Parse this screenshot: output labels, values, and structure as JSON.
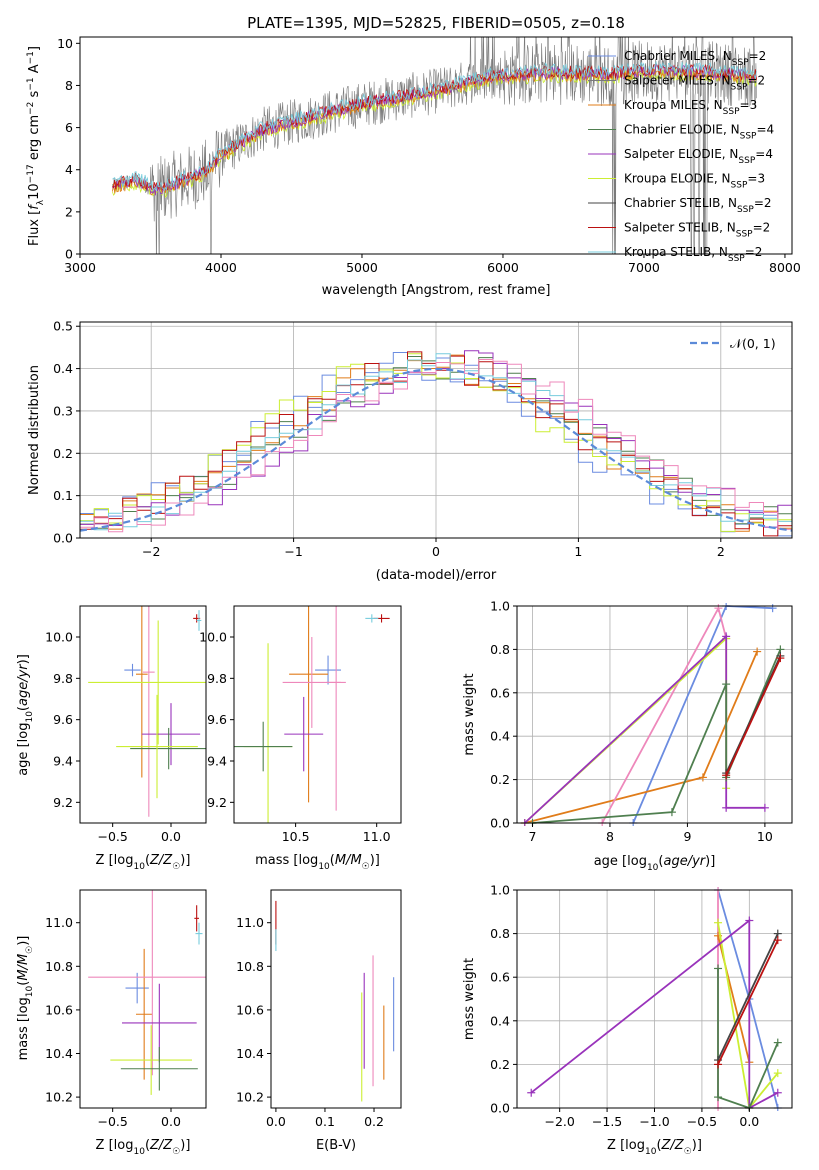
{
  "figure_title": "PLATE=1395, MJD=52825, FIBERID=0505, z=0.18",
  "colors": {
    "Chabrier MILES": "#6b8ce0",
    "Salpeter MILES": "#7a7a7a",
    "Kroupa MILES": "#e07c1a",
    "Chabrier ELODIE": "#4f7f4f",
    "Salpeter ELODIE": "#9933bb",
    "Kroupa ELODIE": "#ccee33",
    "Chabrier STELIB": "#444444",
    "Salpeter STELIB": "#bb1111",
    "Kroupa STELIB": "#77ccdd",
    "pink": "#ee88bb",
    "normal_curve": "#5b8ad8"
  },
  "chart_data": [
    {
      "id": "spectrum",
      "type": "line",
      "title": "PLATE=1395, MJD=52825, FIBERID=0505, z=0.18",
      "xlabel": "wavelength [Angstrom, rest frame]",
      "ylabel": "Flux [f_λ 10^-17 erg cm^-2 s^-1 A^-1]",
      "xlim": [
        3000,
        8050
      ],
      "ylim": [
        0,
        10.3
      ],
      "xticks": [
        3000,
        4000,
        5000,
        6000,
        7000,
        8000
      ],
      "yticks": [
        0,
        2,
        4,
        6,
        8,
        10
      ],
      "legend_position": "right",
      "legend": [
        {
          "label": "Chabrier MILES, N",
          "sub": "SSP",
          "suffix": "=2",
          "color": "Chabrier MILES"
        },
        {
          "label": "Salpeter MILES, N",
          "sub": "SSP",
          "suffix": "=2",
          "color": "Salpeter MILES"
        },
        {
          "label": "Kroupa MILES, N",
          "sub": "SSP",
          "suffix": "=3",
          "color": "Kroupa MILES"
        },
        {
          "label": "Chabrier ELODIE, N",
          "sub": "SSP",
          "suffix": "=4",
          "color": "Chabrier ELODIE"
        },
        {
          "label": "Salpeter ELODIE, N",
          "sub": "SSP",
          "suffix": "=4",
          "color": "Salpeter ELODIE"
        },
        {
          "label": "Kroupa ELODIE, N",
          "sub": "SSP",
          "suffix": "=3",
          "color": "Kroupa ELODIE"
        },
        {
          "label": "Chabrier STELIB, N",
          "sub": "SSP",
          "suffix": "=2",
          "color": "Chabrier STELIB"
        },
        {
          "label": "Salpeter STELIB, N",
          "sub": "SSP",
          "suffix": "=2",
          "color": "Salpeter STELIB"
        },
        {
          "label": "Kroupa STELIB, N",
          "sub": "SSP",
          "suffix": "=2",
          "color": "Kroupa STELIB"
        }
      ],
      "continuum": [
        [
          3230,
          3.2
        ],
        [
          3400,
          3.5
        ],
        [
          3550,
          3.0
        ],
        [
          3700,
          3.4
        ],
        [
          3900,
          3.9
        ],
        [
          4000,
          4.7
        ],
        [
          4300,
          5.9
        ],
        [
          4700,
          6.6
        ],
        [
          5000,
          7.1
        ],
        [
          5500,
          7.7
        ],
        [
          5900,
          8.4
        ],
        [
          6300,
          8.6
        ],
        [
          6700,
          8.5
        ],
        [
          7100,
          8.7
        ],
        [
          7500,
          8.6
        ],
        [
          7800,
          8.4
        ]
      ],
      "grid": false
    },
    {
      "id": "residuals",
      "type": "line",
      "xlabel": "(data-model)/error",
      "ylabel": "Normed distribution",
      "xlim": [
        -2.5,
        2.5
      ],
      "ylim": [
        0,
        0.51
      ],
      "xticks": [
        -2,
        -1,
        0,
        1,
        2
      ],
      "yticks": [
        0.0,
        0.1,
        0.2,
        0.3,
        0.4,
        0.5
      ],
      "legend": "𝒩(0, 1)",
      "legend_position": "upper right",
      "grid": true,
      "histogram_bins": 50,
      "histogram_series_colors": [
        "Chabrier MILES",
        "Kroupa MILES",
        "Chabrier ELODIE",
        "Salpeter ELODIE",
        "Kroupa ELODIE",
        "Salpeter STELIB",
        "Kroupa STELIB",
        "pink"
      ]
    },
    {
      "id": "age_vs_Z",
      "type": "scatter",
      "xlabel": "Z [log10(Z/Z☉)]",
      "ylabel": "age [log10(age/yr)]",
      "xlim": [
        -0.78,
        0.3
      ],
      "ylim": [
        9.1,
        10.15
      ],
      "xticks": [
        -0.5,
        0.0
      ],
      "yticks": [
        9.2,
        9.4,
        9.6,
        9.8,
        10.0
      ],
      "grid": false,
      "points": [
        {
          "x": -0.33,
          "y": 9.84,
          "xerr": 0.07,
          "yerr": 0.03,
          "color": "Chabrier MILES"
        },
        {
          "x": -0.25,
          "y": 9.82,
          "xerr": 0.05,
          "yerr": 0.5,
          "color": "Kroupa MILES"
        },
        {
          "x": -0.19,
          "y": 9.83,
          "xerr": 0.05,
          "yerr": 0.7,
          "color": "pink"
        },
        {
          "x": -0.11,
          "y": 9.78,
          "xerr": 0.6,
          "yerr": 0.3,
          "color": "Kroupa ELODIE"
        },
        {
          "x": 0.0,
          "y": 9.53,
          "xerr": 0.25,
          "yerr": 0.15,
          "color": "Salpeter ELODIE"
        },
        {
          "x": -0.02,
          "y": 9.46,
          "xerr": 0.33,
          "yerr": 0.1,
          "color": "Chabrier ELODIE"
        },
        {
          "x": -0.12,
          "y": 9.47,
          "xerr": 0.35,
          "yerr": 0.25,
          "color": "Kroupa ELODIE"
        },
        {
          "x": 0.22,
          "y": 10.09,
          "xerr": 0.03,
          "yerr": 0.02,
          "color": "Salpeter STELIB"
        },
        {
          "x": 0.24,
          "y": 10.08,
          "xerr": 0.02,
          "yerr": 0.05,
          "color": "Kroupa STELIB"
        }
      ]
    },
    {
      "id": "age_vs_mass",
      "type": "scatter",
      "xlabel": "mass [log10(M/M☉)]",
      "ylabel": "",
      "xlim": [
        10.12,
        11.15
      ],
      "ylim": [
        9.1,
        10.15
      ],
      "xticks": [
        10.5,
        11.0
      ],
      "yticks": [
        9.2,
        9.4,
        9.6,
        9.8,
        10.0
      ],
      "grid": false,
      "points": [
        {
          "x": 10.7,
          "y": 9.84,
          "xerr": 0.08,
          "yerr": 0.07,
          "color": "Chabrier MILES"
        },
        {
          "x": 10.58,
          "y": 9.82,
          "xerr": 0.12,
          "yerr": 0.62,
          "color": "Kroupa MILES"
        },
        {
          "x": 10.6,
          "y": 9.78,
          "xerr": 0.18,
          "yerr": 0.22,
          "color": "pink"
        },
        {
          "x": 10.75,
          "y": 9.78,
          "xerr": 0.06,
          "yerr": 0.62,
          "color": "pink"
        },
        {
          "x": 10.55,
          "y": 9.53,
          "xerr": 0.12,
          "yerr": 0.18,
          "color": "Salpeter ELODIE"
        },
        {
          "x": 10.33,
          "y": 9.47,
          "xerr": 0.15,
          "yerr": 0.5,
          "color": "Kroupa ELODIE"
        },
        {
          "x": 10.3,
          "y": 9.47,
          "xerr": 0.18,
          "yerr": 0.12,
          "color": "Chabrier ELODIE"
        },
        {
          "x": 11.03,
          "y": 10.09,
          "xerr": 0.05,
          "yerr": 0.02,
          "color": "Salpeter STELIB"
        },
        {
          "x": 10.97,
          "y": 10.09,
          "xerr": 0.04,
          "yerr": 0.02,
          "color": "Kroupa STELIB"
        }
      ]
    },
    {
      "id": "weight_vs_age",
      "type": "line",
      "xlabel": "age [log10(age/yr)]",
      "ylabel": "mass weight",
      "xlim": [
        6.8,
        10.35
      ],
      "ylim": [
        0,
        1.0
      ],
      "xticks": [
        7,
        8,
        9,
        10
      ],
      "yticks": [
        0.0,
        0.2,
        0.4,
        0.6,
        0.8,
        1.0
      ],
      "grid": true,
      "series": [
        {
          "color": "Chabrier MILES",
          "points": [
            [
              8.3,
              0.0
            ],
            [
              9.5,
              1.0
            ],
            [
              10.1,
              0.99
            ]
          ]
        },
        {
          "color": "Kroupa MILES",
          "points": [
            [
              6.9,
              0.0
            ],
            [
              9.2,
              0.21
            ],
            [
              9.9,
              0.79
            ]
          ]
        },
        {
          "color": "pink",
          "points": [
            [
              7.9,
              0.0
            ],
            [
              9.4,
              0.99
            ],
            [
              9.5,
              0.85
            ]
          ]
        },
        {
          "color": "Kroupa ELODIE",
          "points": [
            [
              6.9,
              0.0
            ],
            [
              9.5,
              0.85
            ],
            [
              9.5,
              0.16
            ]
          ]
        },
        {
          "color": "Salpeter ELODIE",
          "points": [
            [
              6.9,
              0.0
            ],
            [
              9.5,
              0.86
            ],
            [
              9.5,
              0.07
            ],
            [
              10.0,
              0.07
            ]
          ]
        },
        {
          "color": "Chabrier ELODIE",
          "points": [
            [
              7.0,
              0.0
            ],
            [
              8.8,
              0.05
            ],
            [
              9.5,
              0.64
            ],
            [
              9.5,
              0.21
            ],
            [
              10.2,
              0.8
            ]
          ]
        },
        {
          "color": "Chabrier STELIB",
          "points": [
            [
              9.5,
              0.23
            ],
            [
              10.2,
              0.77
            ]
          ]
        },
        {
          "color": "Salpeter STELIB",
          "points": [
            [
              9.5,
              0.22
            ],
            [
              10.2,
              0.76
            ]
          ]
        }
      ]
    },
    {
      "id": "mass_vs_Z",
      "type": "scatter",
      "xlabel": "Z [log10(Z/Z☉)]",
      "ylabel": "mass [log10(M/M☉)]",
      "xlim": [
        -0.78,
        0.3
      ],
      "ylim": [
        10.15,
        11.15
      ],
      "xticks": [
        -0.5,
        0.0
      ],
      "yticks": [
        10.2,
        10.4,
        10.6,
        10.8,
        11.0
      ],
      "grid": false,
      "points": [
        {
          "x": -0.29,
          "y": 10.7,
          "xerr": 0.1,
          "yerr": 0.07,
          "color": "Chabrier MILES"
        },
        {
          "x": -0.23,
          "y": 10.58,
          "xerr": 0.07,
          "yerr": 0.3,
          "color": "Kroupa MILES"
        },
        {
          "x": -0.16,
          "y": 10.75,
          "xerr": 0.55,
          "yerr": 0.45,
          "color": "pink"
        },
        {
          "x": -0.1,
          "y": 10.54,
          "xerr": 0.32,
          "yerr": 0.18,
          "color": "Salpeter ELODIE"
        },
        {
          "x": -0.17,
          "y": 10.37,
          "xerr": 0.35,
          "yerr": 0.16,
          "color": "Kroupa ELODIE"
        },
        {
          "x": -0.1,
          "y": 10.33,
          "xerr": 0.33,
          "yerr": 0.1,
          "color": "Chabrier ELODIE"
        },
        {
          "x": 0.22,
          "y": 11.02,
          "xerr": 0.02,
          "yerr": 0.06,
          "color": "Salpeter STELIB"
        },
        {
          "x": 0.24,
          "y": 10.95,
          "xerr": 0.03,
          "yerr": 0.05,
          "color": "Kroupa STELIB"
        }
      ]
    },
    {
      "id": "mass_vs_EBV",
      "type": "scatter",
      "xlabel": "E(B-V)",
      "ylabel": "",
      "xlim": [
        -0.01,
        0.255
      ],
      "ylim": [
        10.15,
        11.15
      ],
      "xticks": [
        0.0,
        0.1,
        0.2
      ],
      "yticks": [
        10.2,
        10.4,
        10.6,
        10.8,
        11.0
      ],
      "grid": false,
      "points": [
        {
          "x": 0.0,
          "y": 11.0,
          "xerr": 0.0,
          "yerr": 0.1,
          "color": "Salpeter STELIB"
        },
        {
          "x": 0.0,
          "y": 10.92,
          "xerr": 0.0,
          "yerr": 0.05,
          "color": "Kroupa STELIB"
        },
        {
          "x": 0.175,
          "y": 10.43,
          "xerr": 0.0,
          "yerr": 0.25,
          "color": "Kroupa ELODIE"
        },
        {
          "x": 0.18,
          "y": 10.55,
          "xerr": 0.0,
          "yerr": 0.22,
          "color": "Salpeter ELODIE"
        },
        {
          "x": 0.198,
          "y": 10.55,
          "xerr": 0.0,
          "yerr": 0.3,
          "color": "pink"
        },
        {
          "x": 0.22,
          "y": 10.45,
          "xerr": 0.0,
          "yerr": 0.17,
          "color": "Kroupa MILES"
        },
        {
          "x": 0.24,
          "y": 10.58,
          "xerr": 0.0,
          "yerr": 0.17,
          "color": "Chabrier MILES"
        }
      ]
    },
    {
      "id": "weight_vs_Z",
      "type": "line",
      "xlabel": "Z [log10(Z/Z☉)]",
      "ylabel": "mass weight",
      "xlim": [
        -2.45,
        0.45
      ],
      "ylim": [
        0,
        1.0
      ],
      "xticks": [
        -2.0,
        -1.5,
        -1.0,
        -0.5,
        0.0
      ],
      "yticks": [
        0.0,
        0.2,
        0.4,
        0.6,
        0.8,
        1.0
      ],
      "grid": true,
      "series": [
        {
          "color": "Chabrier MILES",
          "points": [
            [
              -0.33,
              1.0
            ],
            [
              0.0,
              0.5
            ],
            [
              0.3,
              0.0
            ]
          ]
        },
        {
          "color": "pink",
          "points": [
            [
              -0.33,
              1.0
            ],
            [
              -0.33,
              0.0
            ]
          ]
        },
        {
          "color": "Kroupa MILES",
          "points": [
            [
              -0.33,
              0.79
            ],
            [
              0.0,
              0.21
            ]
          ]
        },
        {
          "color": "Kroupa ELODIE",
          "points": [
            [
              -0.33,
              0.85
            ],
            [
              0.0,
              0.0
            ],
            [
              0.3,
              0.16
            ]
          ]
        },
        {
          "color": "Salpeter ELODIE",
          "points": [
            [
              -2.3,
              0.07
            ],
            [
              0.0,
              0.86
            ],
            [
              0.0,
              0.0
            ],
            [
              0.3,
              0.07
            ]
          ]
        },
        {
          "color": "Chabrier ELODIE",
          "points": [
            [
              -0.33,
              0.64
            ],
            [
              -0.33,
              0.05
            ],
            [
              0.0,
              0.0
            ],
            [
              0.3,
              0.3
            ]
          ]
        },
        {
          "color": "Chabrier STELIB",
          "points": [
            [
              -0.33,
              0.22
            ],
            [
              0.3,
              0.8
            ]
          ]
        },
        {
          "color": "Salpeter STELIB",
          "points": [
            [
              -0.33,
              0.2
            ],
            [
              0.3,
              0.77
            ]
          ]
        }
      ]
    }
  ]
}
